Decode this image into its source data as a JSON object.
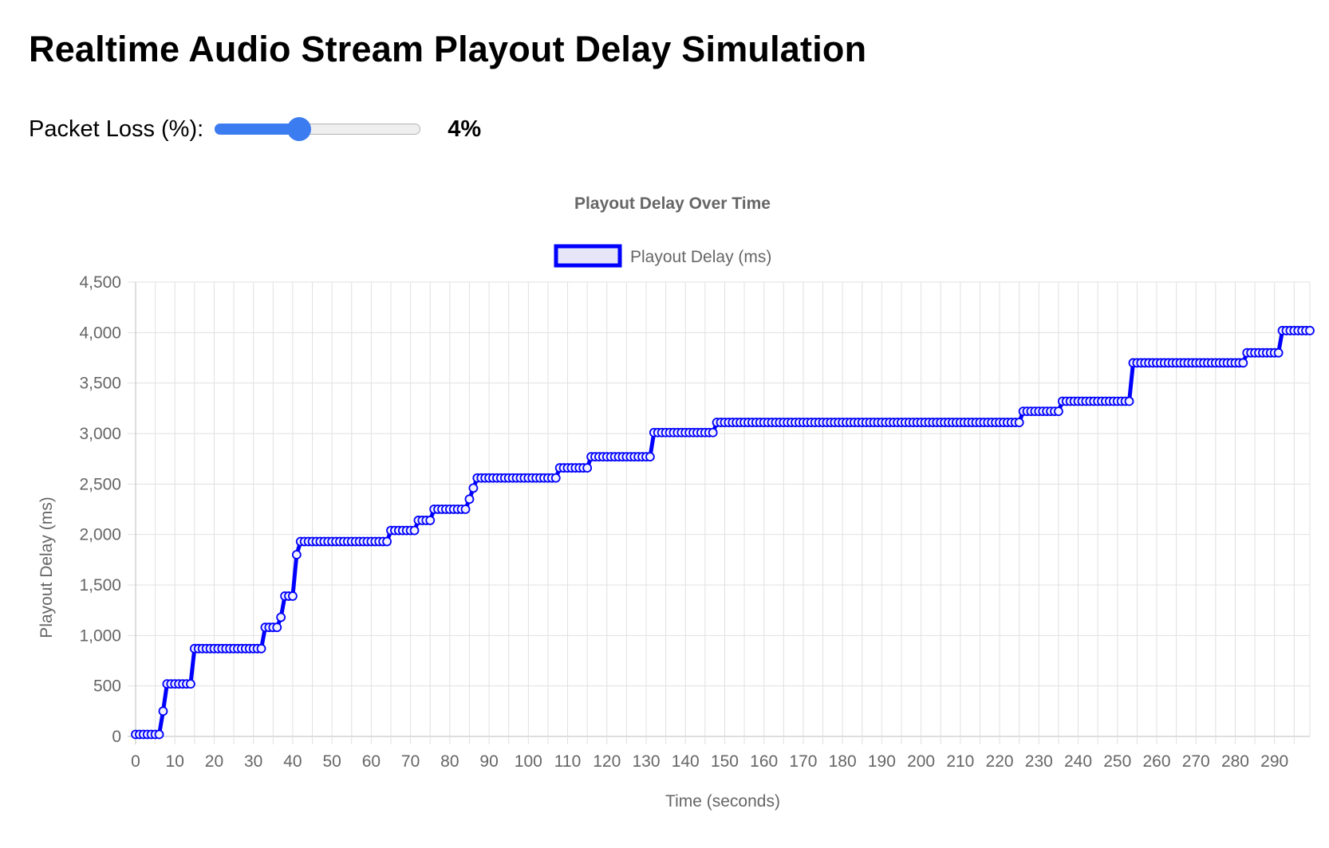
{
  "page": {
    "title": "Realtime Audio Stream Playout Delay Simulation"
  },
  "controls": {
    "packet_loss_label": "Packet Loss (%):",
    "packet_loss_value": 4,
    "packet_loss_display": "4%",
    "min": 0,
    "max": 10
  },
  "colors": {
    "line": "#0000ff",
    "legend_fill": "#e6e6f8",
    "grid": "#e0e0e0",
    "axis_text": "#666666",
    "slider": "#3b7cf0"
  },
  "chart_data": {
    "type": "line",
    "title": "Playout Delay Over Time",
    "xlabel": "Time (seconds)",
    "ylabel": "Playout Delay (ms)",
    "legend": {
      "position": "top",
      "entries": [
        "Playout Delay (ms)"
      ]
    },
    "grid": true,
    "xlim": [
      0,
      299
    ],
    "ylim": [
      0,
      4500
    ],
    "x_ticks": [
      0,
      10,
      20,
      30,
      40,
      50,
      60,
      70,
      80,
      90,
      100,
      110,
      120,
      130,
      140,
      150,
      160,
      170,
      180,
      190,
      200,
      210,
      220,
      230,
      240,
      250,
      260,
      270,
      280,
      290
    ],
    "y_ticks": [
      0,
      500,
      1000,
      1500,
      2000,
      2500,
      3000,
      3500,
      4000,
      4500
    ],
    "y_tick_labels": [
      "0",
      "500",
      "1,000",
      "1,500",
      "2,000",
      "2,500",
      "3,000",
      "3,500",
      "4,000",
      "4,500"
    ],
    "x_tick_labels": [
      "0",
      "10",
      "20",
      "30",
      "40",
      "50",
      "60",
      "70",
      "80",
      "90",
      "100",
      "110",
      "120",
      "130",
      "140",
      "150",
      "160",
      "170",
      "180",
      "190",
      "200",
      "210",
      "220",
      "230",
      "240",
      "250",
      "260",
      "270",
      "280",
      "290"
    ],
    "series": [
      {
        "name": "Playout Delay (ms)",
        "steps": [
          {
            "x_start": 0,
            "x_end": 6,
            "y": 20
          },
          {
            "x_start": 7,
            "x_end": 7,
            "y": 250
          },
          {
            "x_start": 8,
            "x_end": 14,
            "y": 520
          },
          {
            "x_start": 15,
            "x_end": 32,
            "y": 870
          },
          {
            "x_start": 33,
            "x_end": 36,
            "y": 1080
          },
          {
            "x_start": 37,
            "x_end": 37,
            "y": 1180
          },
          {
            "x_start": 38,
            "x_end": 40,
            "y": 1390
          },
          {
            "x_start": 41,
            "x_end": 41,
            "y": 1800
          },
          {
            "x_start": 42,
            "x_end": 64,
            "y": 1930
          },
          {
            "x_start": 65,
            "x_end": 71,
            "y": 2040
          },
          {
            "x_start": 72,
            "x_end": 75,
            "y": 2140
          },
          {
            "x_start": 76,
            "x_end": 84,
            "y": 2250
          },
          {
            "x_start": 85,
            "x_end": 85,
            "y": 2350
          },
          {
            "x_start": 86,
            "x_end": 86,
            "y": 2460
          },
          {
            "x_start": 87,
            "x_end": 107,
            "y": 2560
          },
          {
            "x_start": 108,
            "x_end": 115,
            "y": 2660
          },
          {
            "x_start": 116,
            "x_end": 131,
            "y": 2770
          },
          {
            "x_start": 132,
            "x_end": 147,
            "y": 3010
          },
          {
            "x_start": 148,
            "x_end": 225,
            "y": 3110
          },
          {
            "x_start": 226,
            "x_end": 235,
            "y": 3220
          },
          {
            "x_start": 236,
            "x_end": 253,
            "y": 3320
          },
          {
            "x_start": 254,
            "x_end": 282,
            "y": 3700
          },
          {
            "x_start": 283,
            "x_end": 291,
            "y": 3800
          },
          {
            "x_start": 292,
            "x_end": 299,
            "y": 4020
          }
        ]
      }
    ]
  }
}
